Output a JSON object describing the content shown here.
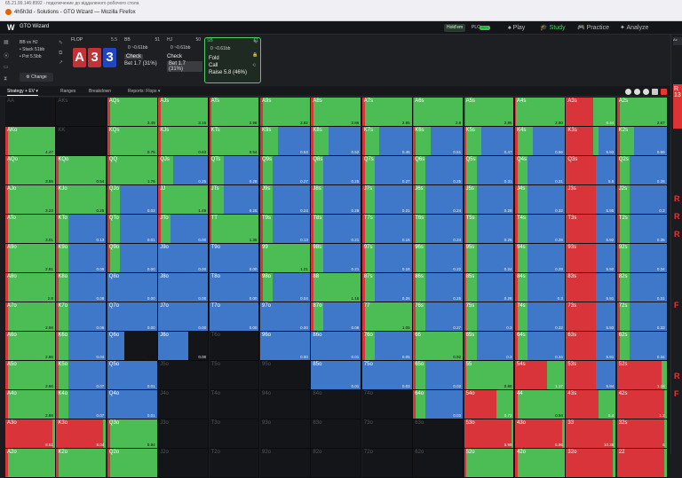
{
  "browser": {
    "url": "65.21.99.146:8992 - подключение до віддаленого робочого стола",
    "tab": "4h5h3d - Solutions - GTO Wizard — Mozilla Firefox"
  },
  "app": {
    "title": "GTO Wizard",
    "game_pill": "Hold'em",
    "plo_pill": "PLO",
    "beta": "BETA",
    "nav": {
      "play": "Play",
      "study": "Study",
      "practice": "Practice",
      "analyze": "Analyze"
    }
  },
  "settings": {
    "matchup": "BB vs HJ",
    "stack": "• Stack 51bb",
    "pot": "• Pot 5.5bb",
    "change": "Change"
  },
  "flop": {
    "label": "FLOP",
    "num": "5.5",
    "cards": [
      "A",
      "3",
      "3"
    ]
  },
  "bb": {
    "label": "BB",
    "num": "51",
    "stack": "0 ~0.61bb",
    "row1": "Check",
    "row2": "Bet 1.7 (31%)"
  },
  "hj": {
    "label": "HJ",
    "num": "50",
    "stack": "0 ~0.61bb",
    "row1": "Check",
    "row2": "Bet 1.7 (31%)"
  },
  "sb": {
    "label": "SB",
    "num": "51",
    "stack": "0 ~0.61bb",
    "o1": "Fold",
    "o2": "Call",
    "o3": "Raise 5.8 (46%)"
  },
  "subtabs": {
    "strategy": "Strategy + EV",
    "ranges": "Ranges",
    "breakdown": "Breakdown",
    "reports": "Reports: Flops"
  },
  "colors": {
    "raise": "#d9343a",
    "call": "#4cbc55",
    "fold": "#3f78c9",
    "empty": "#141518"
  },
  "hands": [
    [
      "AA",
      "AKs",
      "AQs",
      "AJs",
      "ATs",
      "A9s",
      "A8s",
      "A7s",
      "A6s",
      "A5s",
      "A4s",
      "A3s",
      "A2s"
    ],
    [
      "AKo",
      "KK",
      "KQs",
      "KJs",
      "KTs",
      "K9s",
      "K8s",
      "K7s",
      "K6s",
      "K5s",
      "K4s",
      "K3s",
      "K2s"
    ],
    [
      "AQo",
      "KQo",
      "QQ",
      "QJs",
      "QTs",
      "Q9s",
      "Q8s",
      "Q7s",
      "Q6s",
      "Q5s",
      "Q4s",
      "Q3s",
      "Q2s"
    ],
    [
      "AJo",
      "KJo",
      "QJo",
      "JJ",
      "JTs",
      "J9s",
      "J8s",
      "J7s",
      "J6s",
      "J5s",
      "J4s",
      "J3s",
      "J2s"
    ],
    [
      "ATo",
      "KTo",
      "QTo",
      "JTo",
      "TT",
      "T9s",
      "T8s",
      "T7s",
      "T6s",
      "T5s",
      "T4s",
      "T3s",
      "T2s"
    ],
    [
      "A9o",
      "K9o",
      "Q9o",
      "J9o",
      "T9o",
      "99",
      "98s",
      "97s",
      "96s",
      "95s",
      "94s",
      "93s",
      "92s"
    ],
    [
      "A8o",
      "K8o",
      "Q8o",
      "J8o",
      "T8o",
      "98o",
      "88",
      "87s",
      "86s",
      "85s",
      "84s",
      "83s",
      "82s"
    ],
    [
      "A7o",
      "K7o",
      "Q7o",
      "J7o",
      "T7o",
      "97o",
      "87o",
      "77",
      "76s",
      "75s",
      "74s",
      "73s",
      "72s"
    ],
    [
      "A6o",
      "K6o",
      "Q6o",
      "J6o",
      "T6o",
      "96o",
      "86o",
      "76o",
      "66",
      "65s",
      "64s",
      "63s",
      "62s"
    ],
    [
      "A5o",
      "K5o",
      "Q5o",
      "J5o",
      "T5o",
      "95o",
      "85o",
      "75o",
      "65o",
      "55",
      "54s",
      "53s",
      "52s"
    ],
    [
      "A4o",
      "K4o",
      "Q4o",
      "J4o",
      "T4o",
      "94o",
      "84o",
      "74o",
      "64o",
      "54o",
      "44",
      "43s",
      "42s"
    ],
    [
      "A3o",
      "K3o",
      "Q3o",
      "J3o",
      "T3o",
      "93o",
      "83o",
      "73o",
      "63o",
      "53o",
      "43o",
      "33",
      "32s"
    ],
    [
      "A2o",
      "K2o",
      "Q2o",
      "J2o",
      "T2o",
      "92o",
      "82o",
      "72o",
      "62o",
      "52o",
      "42o",
      "32o",
      "22"
    ]
  ],
  "cells": [
    [
      [
        0,
        0,
        0,
        ""
      ],
      [
        0,
        0,
        0,
        ""
      ],
      [
        0.05,
        0.95,
        0,
        "3.49"
      ],
      [
        0.05,
        0.95,
        0,
        "3.15"
      ],
      [
        0.05,
        0.95,
        0,
        "2.98"
      ],
      [
        0.05,
        0.95,
        0,
        "2.82"
      ],
      [
        0.05,
        0.95,
        0,
        "2.86"
      ],
      [
        0.05,
        0.95,
        0,
        "2.85"
      ],
      [
        0.02,
        0.98,
        0,
        "2.8"
      ],
      [
        0.02,
        0.98,
        0,
        "2.86"
      ],
      [
        0.02,
        0.98,
        0,
        "2.80"
      ],
      [
        0.55,
        0.45,
        0,
        "8.44"
      ],
      [
        0.05,
        0.95,
        0,
        "2.67"
      ]
    ],
    [
      [
        0.05,
        0.95,
        0,
        "4.47"
      ],
      [
        0,
        0,
        0,
        ""
      ],
      [
        0.05,
        0.95,
        0,
        "0.75"
      ],
      [
        0.05,
        0.95,
        0,
        "0.63"
      ],
      [
        0.05,
        0.95,
        0,
        "0.54"
      ],
      [
        0.05,
        0.3,
        0.65,
        "0.53"
      ],
      [
        0.05,
        0.3,
        0.65,
        "0.52"
      ],
      [
        0.05,
        0.3,
        0.65,
        "0.46"
      ],
      [
        0.05,
        0.3,
        0.65,
        "0.51"
      ],
      [
        0.05,
        0.3,
        0.65,
        "0.47"
      ],
      [
        0.05,
        0.3,
        0.65,
        "0.56"
      ],
      [
        0.55,
        0.1,
        0.35,
        "5.93"
      ],
      [
        0.05,
        0.3,
        0.65,
        "0.59"
      ]
    ],
    [
      [
        0.05,
        0.95,
        0,
        "3.55"
      ],
      [
        0.05,
        0.95,
        0,
        "0.54"
      ],
      [
        0.05,
        0.95,
        0,
        "1.76"
      ],
      [
        0.05,
        0.25,
        0.7,
        "0.25"
      ],
      [
        0.05,
        0.25,
        0.7,
        "0.28"
      ],
      [
        0.05,
        0.2,
        0.75,
        "0.27"
      ],
      [
        0.05,
        0.2,
        0.75,
        "0.25"
      ],
      [
        0.05,
        0.2,
        0.75,
        "0.27"
      ],
      [
        0.05,
        0.2,
        0.75,
        "0.25"
      ],
      [
        0.05,
        0.2,
        0.75,
        "0.31"
      ],
      [
        0.05,
        0.2,
        0.75,
        "0.31"
      ],
      [
        0.6,
        0,
        0.4,
        "5.9"
      ],
      [
        0.05,
        0.2,
        0.75,
        "0.28"
      ]
    ],
    [
      [
        0.05,
        0.95,
        0,
        "3.23"
      ],
      [
        0.05,
        0.95,
        0,
        "0.25"
      ],
      [
        0.05,
        0.2,
        0.75,
        "0.03"
      ],
      [
        0.05,
        0.95,
        0,
        "1.49"
      ],
      [
        0.05,
        0.25,
        0.7,
        "0.25"
      ],
      [
        0.05,
        0.2,
        0.75,
        "0.24"
      ],
      [
        0.05,
        0.2,
        0.75,
        "0.28"
      ],
      [
        0.05,
        0.2,
        0.75,
        "0.21"
      ],
      [
        0.05,
        0.2,
        0.75,
        "0.24"
      ],
      [
        0.05,
        0.2,
        0.75,
        "0.28"
      ],
      [
        0.05,
        0.2,
        0.75,
        "0.32"
      ],
      [
        0.6,
        0,
        0.4,
        "5.95"
      ],
      [
        0.05,
        0.2,
        0.75,
        "0.3"
      ]
    ],
    [
      [
        0.05,
        0.95,
        0,
        "3.01"
      ],
      [
        0.05,
        0.2,
        0.75,
        "0.13"
      ],
      [
        0.05,
        0.2,
        0.75,
        "0.01"
      ],
      [
        0.05,
        0.2,
        0.75,
        "0.00"
      ],
      [
        0.05,
        0.95,
        0,
        "1.35"
      ],
      [
        0.05,
        0.2,
        0.75,
        "0.13"
      ],
      [
        0.05,
        0.2,
        0.75,
        "0.21"
      ],
      [
        0.05,
        0.2,
        0.75,
        "0.16"
      ],
      [
        0.05,
        0.2,
        0.75,
        "0.24"
      ],
      [
        0.05,
        0.2,
        0.75,
        "0.26"
      ],
      [
        0.05,
        0.2,
        0.75,
        "0.28"
      ],
      [
        0.6,
        0,
        0.4,
        "5.92"
      ],
      [
        0.05,
        0.2,
        0.75,
        "0.35"
      ]
    ],
    [
      [
        0.05,
        0.95,
        0,
        "2.81"
      ],
      [
        0.05,
        0.2,
        0.75,
        "0.09"
      ],
      [
        0.05,
        0.2,
        0.75,
        "0.00"
      ],
      [
        0,
        0,
        1,
        "0.00"
      ],
      [
        0,
        0,
        1,
        "0.00"
      ],
      [
        0.05,
        0.95,
        0,
        "1.21"
      ],
      [
        0.05,
        0.2,
        0.75,
        "0.21"
      ],
      [
        0.05,
        0.2,
        0.75,
        "0.18"
      ],
      [
        0.05,
        0.2,
        0.75,
        "0.22"
      ],
      [
        0.05,
        0.2,
        0.75,
        "0.24"
      ],
      [
        0.05,
        0.2,
        0.75,
        "0.28"
      ],
      [
        0.6,
        0,
        0.4,
        "5.92"
      ],
      [
        0.05,
        0.2,
        0.75,
        "0.34"
      ]
    ],
    [
      [
        0.05,
        0.95,
        0,
        "2.8"
      ],
      [
        0.05,
        0.2,
        0.75,
        "0.08"
      ],
      [
        0,
        0,
        1,
        "0.00"
      ],
      [
        0,
        0,
        1,
        "0.00"
      ],
      [
        0,
        0,
        1,
        "0.00"
      ],
      [
        0.05,
        0.2,
        0.75,
        "0.04"
      ],
      [
        0.05,
        0.95,
        0,
        "1.16"
      ],
      [
        0.05,
        0.2,
        0.75,
        "0.26"
      ],
      [
        0.05,
        0.2,
        0.75,
        "0.25"
      ],
      [
        0.05,
        0.2,
        0.75,
        "0.28"
      ],
      [
        0.05,
        0.2,
        0.75,
        "0.3"
      ],
      [
        0.6,
        0,
        0.4,
        "5.91"
      ],
      [
        0.05,
        0.2,
        0.75,
        "0.31"
      ]
    ],
    [
      [
        0.05,
        0.95,
        0,
        "2.58"
      ],
      [
        0.05,
        0.2,
        0.75,
        "0.06"
      ],
      [
        0,
        0,
        1,
        "0.00"
      ],
      [
        0,
        0,
        1,
        "0.00"
      ],
      [
        0,
        0,
        1,
        "0.00"
      ],
      [
        0,
        0,
        1,
        "0.00"
      ],
      [
        0.05,
        0.2,
        0.75,
        "0.08"
      ],
      [
        0.05,
        0.95,
        0,
        "1.05"
      ],
      [
        0.05,
        0.2,
        0.75,
        "0.27"
      ],
      [
        0.05,
        0.2,
        0.75,
        "0.3"
      ],
      [
        0.05,
        0.2,
        0.75,
        "0.32"
      ],
      [
        0.6,
        0,
        0.4,
        "5.93"
      ],
      [
        0.05,
        0.2,
        0.75,
        "0.33"
      ]
    ],
    [
      [
        0.05,
        0.95,
        0,
        "2.86"
      ],
      [
        0.05,
        0.2,
        0.75,
        "0.04"
      ],
      [
        0,
        0,
        0.35,
        "0.00"
      ],
      [
        0,
        0,
        0.6,
        "0.00"
      ],
      [
        0,
        0,
        0,
        ""
      ],
      [
        0,
        0,
        1,
        "0.00"
      ],
      [
        0,
        0,
        1,
        "0.01"
      ],
      [
        0.05,
        0.2,
        0.75,
        "0.05"
      ],
      [
        0.05,
        0.95,
        0,
        "0.92"
      ],
      [
        0.05,
        0.2,
        0.75,
        "0.3"
      ],
      [
        0.05,
        0.2,
        0.75,
        "0.34"
      ],
      [
        0.6,
        0,
        0.4,
        "5.91"
      ],
      [
        0.05,
        0.2,
        0.75,
        "0.34"
      ]
    ],
    [
      [
        0.05,
        0.95,
        0,
        "2.66"
      ],
      [
        0.05,
        0.2,
        0.75,
        "0.07"
      ],
      [
        0,
        0,
        1,
        "0.01"
      ],
      [
        0,
        0,
        0,
        ""
      ],
      [
        0,
        0,
        0,
        ""
      ],
      [
        0,
        0,
        0,
        ""
      ],
      [
        0,
        0,
        1,
        "0.01"
      ],
      [
        0,
        0,
        1,
        "0.03"
      ],
      [
        0.05,
        0.2,
        0.75,
        "0.02"
      ],
      [
        0.05,
        0.95,
        0,
        "0.88"
      ],
      [
        0.65,
        0.35,
        0,
        "1.17"
      ],
      [
        0.6,
        0,
        0.4,
        "5.94"
      ],
      [
        0.9,
        0.1,
        0,
        "1.18"
      ]
    ],
    [
      [
        0.05,
        0.95,
        0,
        "2.88"
      ],
      [
        0.05,
        0.2,
        0.75,
        "0.07"
      ],
      [
        0,
        0,
        1,
        "0.01"
      ],
      [
        0,
        0,
        0,
        ""
      ],
      [
        0,
        0,
        0,
        ""
      ],
      [
        0,
        0,
        0,
        ""
      ],
      [
        0,
        0,
        0,
        ""
      ],
      [
        0,
        0,
        0,
        ""
      ],
      [
        0.05,
        0.2,
        0.75,
        "0.03"
      ],
      [
        0.65,
        0.35,
        0,
        "0.72"
      ],
      [
        0.05,
        0.95,
        0,
        "0.94"
      ],
      [
        0.65,
        0.35,
        0,
        "5.4"
      ],
      [
        0.95,
        0.05,
        0,
        "1.2"
      ]
    ],
    [
      [
        0.95,
        0.05,
        0,
        "8.51"
      ],
      [
        0.95,
        0.05,
        0,
        "8.04"
      ],
      [
        0.05,
        0.95,
        0,
        "5.94"
      ],
      [
        0,
        0,
        0,
        ""
      ],
      [
        0,
        0,
        0,
        ""
      ],
      [
        0,
        0,
        0,
        ""
      ],
      [
        0,
        0,
        0,
        ""
      ],
      [
        0,
        0,
        0,
        ""
      ],
      [
        0,
        0,
        0,
        ""
      ],
      [
        0.95,
        0.05,
        0,
        "5.98"
      ],
      [
        0.95,
        0.05,
        0,
        "5.96"
      ],
      [
        0.95,
        0.05,
        0,
        "10.36"
      ],
      [
        0.95,
        0.05,
        0,
        "6"
      ]
    ],
    [
      [
        0.05,
        0.95,
        0,
        ""
      ],
      [
        0.05,
        0.95,
        0,
        ""
      ],
      [
        0.05,
        0.95,
        0,
        ""
      ],
      [
        0,
        0,
        0,
        ""
      ],
      [
        0,
        0,
        0,
        ""
      ],
      [
        0,
        0,
        0,
        ""
      ],
      [
        0,
        0,
        0,
        ""
      ],
      [
        0,
        0,
        0,
        ""
      ],
      [
        0,
        0,
        0,
        ""
      ],
      [
        0.05,
        0.95,
        0,
        ""
      ],
      [
        0.05,
        0.95,
        0,
        ""
      ],
      [
        0.95,
        0.05,
        0,
        ""
      ],
      [
        0.95,
        0.05,
        0,
        ""
      ]
    ]
  ],
  "rightpanel": {
    "btn": "Ac",
    "letters": [
      "R",
      "R",
      "R",
      "F",
      "R",
      "F"
    ],
    "red": "R 13"
  }
}
